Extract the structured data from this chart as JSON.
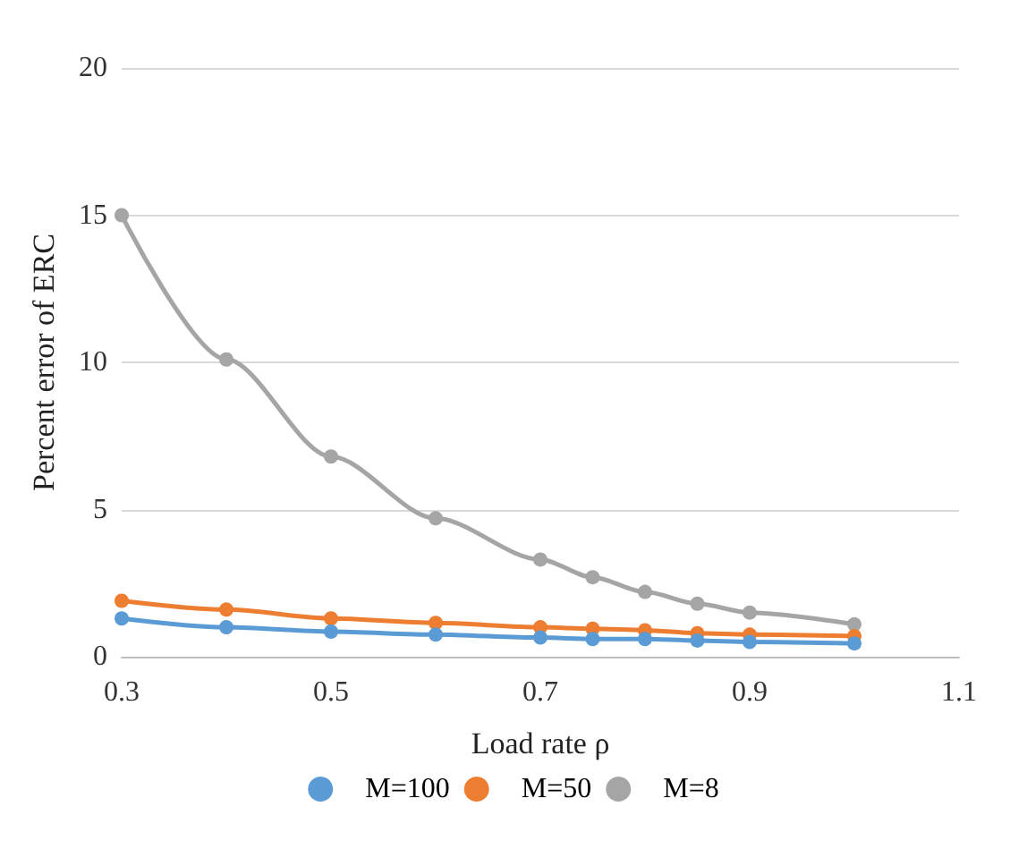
{
  "chart_data": {
    "type": "line",
    "xlabel": "Load rate ρ",
    "ylabel": "Percent error of ERC",
    "x": [
      0.3,
      0.4,
      0.5,
      0.6,
      0.7,
      0.75,
      0.8,
      0.85,
      0.9,
      1.0
    ],
    "series": [
      {
        "name": "M=100",
        "color": "#5b9bd5",
        "values": [
          1.3,
          1.0,
          0.85,
          0.75,
          0.65,
          0.6,
          0.6,
          0.55,
          0.5,
          0.45
        ]
      },
      {
        "name": "M=50",
        "color": "#ed7d31",
        "values": [
          1.9,
          1.6,
          1.3,
          1.15,
          1.0,
          0.95,
          0.9,
          0.8,
          0.75,
          0.7
        ]
      },
      {
        "name": "M=8",
        "color": "#a5a5a5",
        "values": [
          15,
          10.1,
          6.8,
          4.7,
          3.3,
          2.7,
          2.2,
          1.8,
          1.5,
          1.1
        ]
      }
    ],
    "xlim": [
      0.3,
      1.1
    ],
    "xticks": [
      0.3,
      0.5,
      0.7,
      0.9,
      1.1
    ],
    "ylim": [
      0,
      20
    ],
    "yticks": [
      0,
      5,
      10,
      15,
      20
    ],
    "grid": "y",
    "legend": "bottom",
    "marker": "circle",
    "line_style": "solid"
  }
}
